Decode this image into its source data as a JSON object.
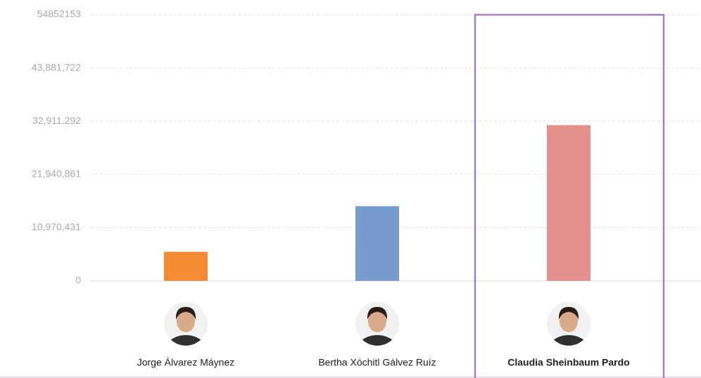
{
  "chart_data": {
    "type": "bar",
    "categories": [
      "Jorge Álvarez Máynez",
      "Bertha Xóchitl Gálvez Ruíz",
      "Claudia Sheinbaum Pardo"
    ],
    "values": [
      6000000,
      15400000,
      32100000
    ],
    "colors": [
      "#f68b33",
      "#769bcc",
      "#e5908e"
    ],
    "ylim": [
      0,
      54852153
    ],
    "yticks": [
      0,
      {
        "value": 10970431,
        "label": "10,970,431"
      },
      {
        "value": 21940861,
        "label": "21,940,861"
      },
      {
        "value": 32911292,
        "label": "32,911,292"
      },
      {
        "value": 43881722,
        "label": "43,881,722"
      },
      54852153
    ],
    "grid": true,
    "highlight_index": 2,
    "highlight_color": "#a57fba"
  }
}
